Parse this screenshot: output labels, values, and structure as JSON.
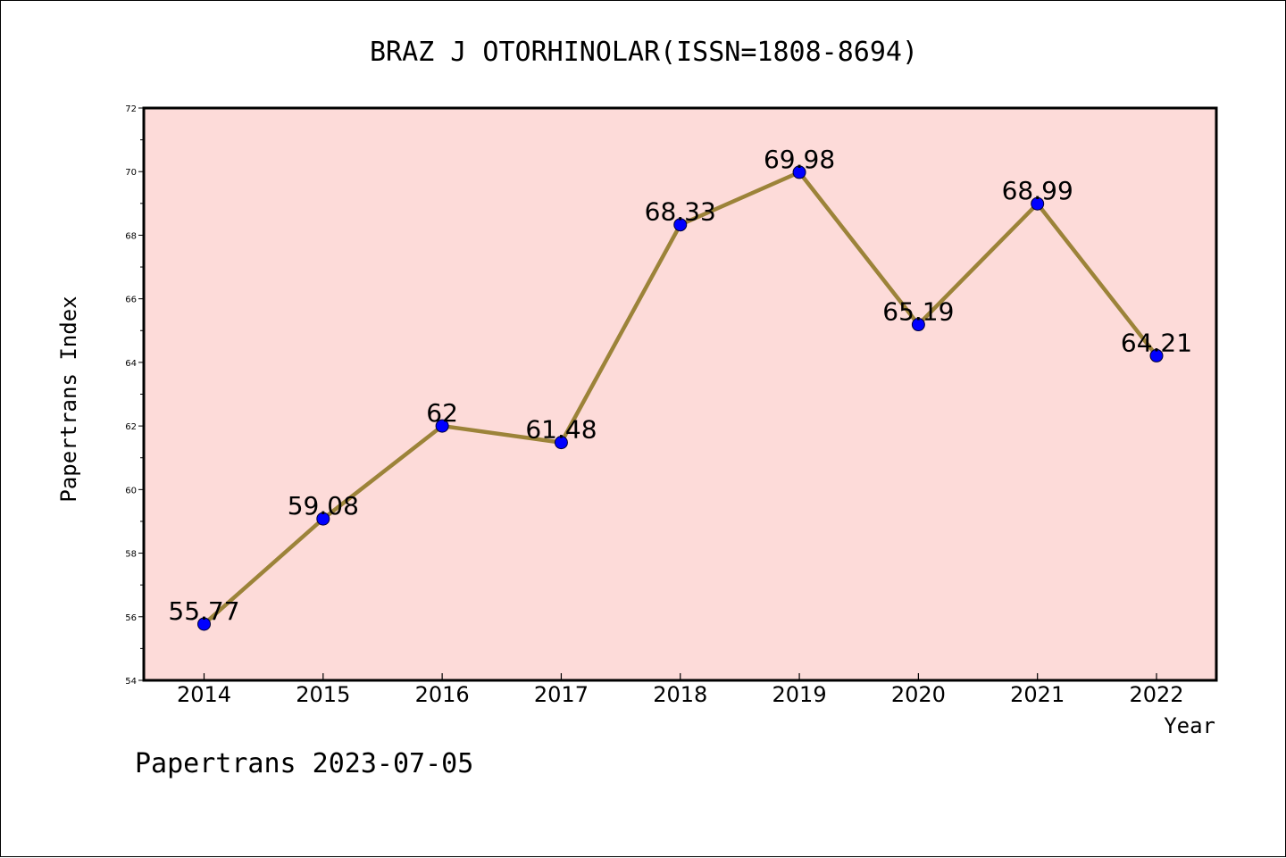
{
  "chart_data": {
    "type": "line",
    "title": "BRAZ J OTORHINOLAR(ISSN=1808-8694)",
    "xlabel": "Year",
    "ylabel": "Papertrans Index",
    "categories": [
      "2014",
      "2015",
      "2016",
      "2017",
      "2018",
      "2019",
      "2020",
      "2021",
      "2022"
    ],
    "values": [
      55.77,
      59.08,
      62,
      61.48,
      68.33,
      69.98,
      65.19,
      68.99,
      64.21
    ],
    "data_labels": [
      "55.77",
      "59.08",
      "62",
      "61.48",
      "68.33",
      "69.98",
      "65.19",
      "68.99",
      "64.21"
    ],
    "ylim": [
      54,
      72
    ],
    "yticks": [
      54,
      56,
      58,
      60,
      62,
      64,
      66,
      68,
      70,
      72
    ],
    "grid": false,
    "colors": {
      "plot_background": "#fddbd9",
      "line": "#9c8339",
      "marker": "#0000ff"
    }
  },
  "footer": {
    "text": "Papertrans 2023-07-05"
  }
}
